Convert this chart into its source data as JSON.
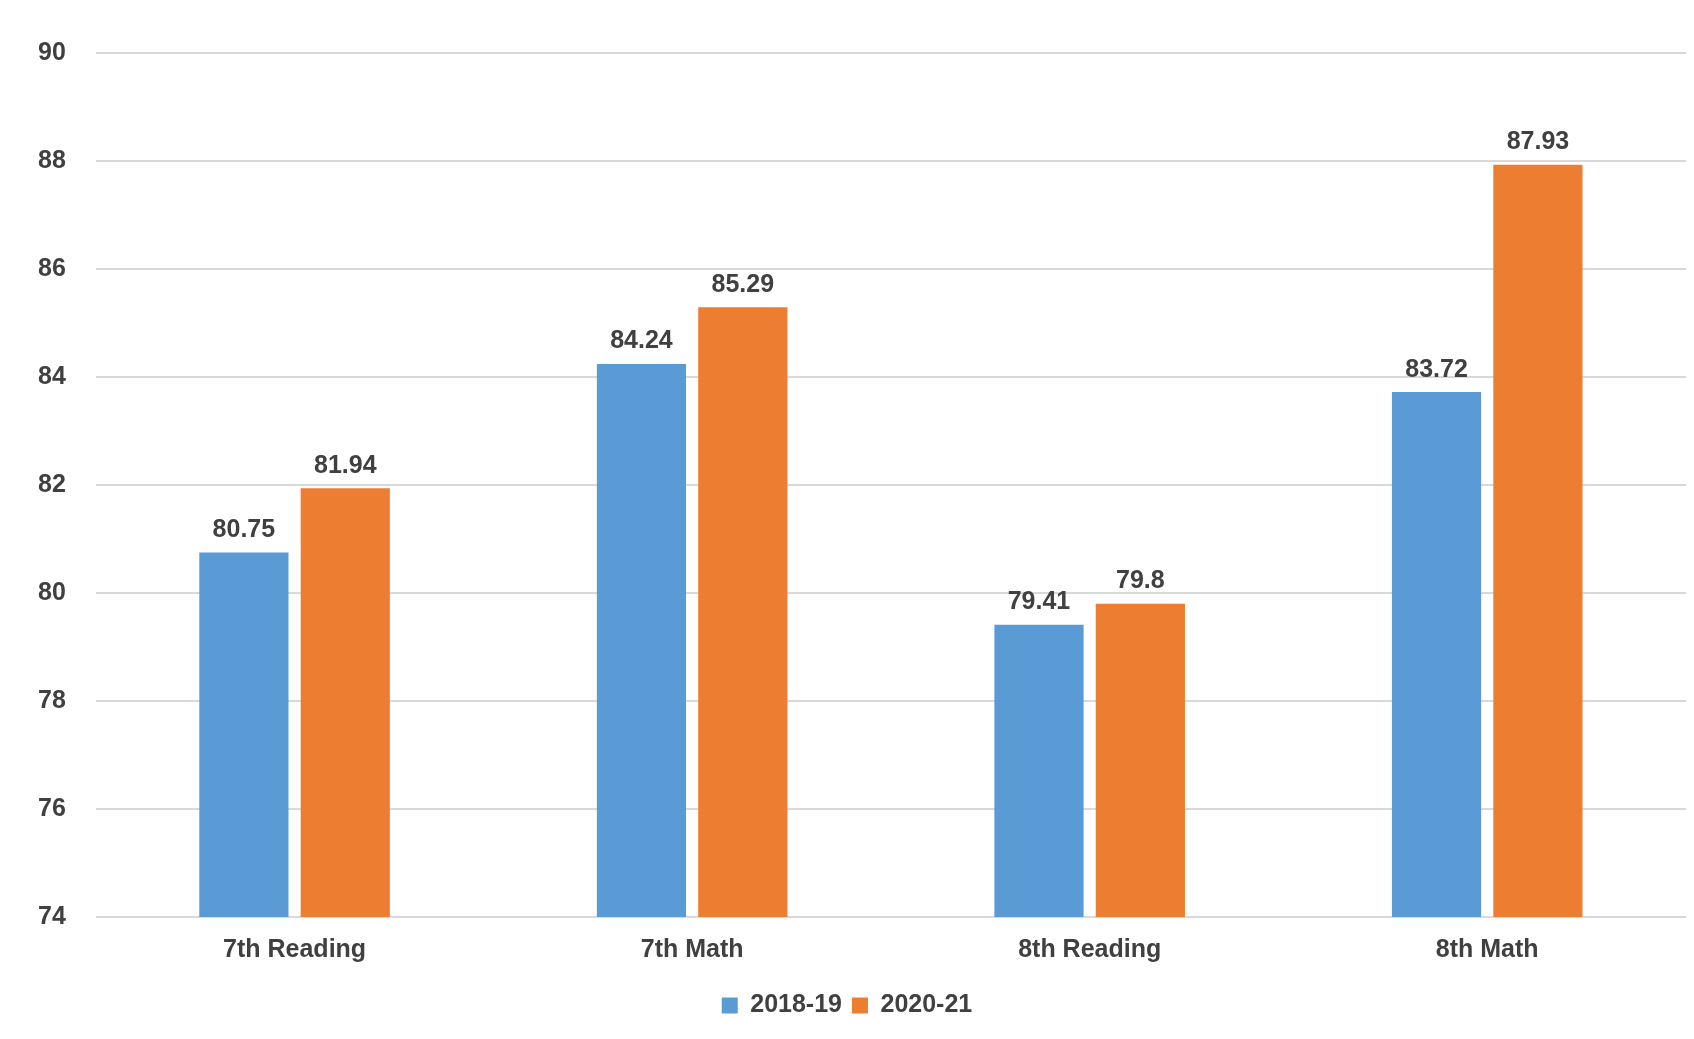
{
  "chart_data": {
    "type": "bar",
    "categories": [
      "7th Reading",
      "7th Math",
      "8th Reading",
      "8th Math"
    ],
    "series": [
      {
        "name": "2018-19",
        "color": "#5b9bd5",
        "values": [
          80.75,
          84.24,
          79.41,
          83.72
        ]
      },
      {
        "name": "2020-21",
        "color": "#ed7d31",
        "values": [
          81.94,
          85.29,
          79.8,
          87.93
        ]
      }
    ],
    "ylim": [
      74,
      90
    ],
    "yticks": [
      74,
      76,
      78,
      80,
      82,
      84,
      86,
      88,
      90
    ],
    "grid": "y",
    "legend": "bottom",
    "data_labels": true
  }
}
